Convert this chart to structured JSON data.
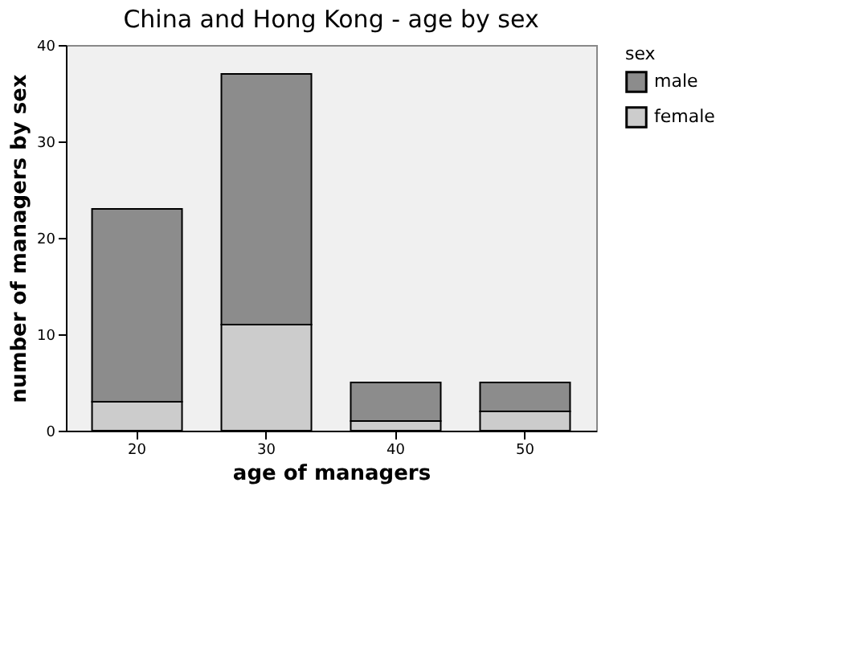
{
  "chart_data": {
    "type": "bar",
    "title": "China and Hong Kong  - age by sex",
    "xlabel": "age of managers",
    "ylabel": "number of managers by sex",
    "legend_title": "sex",
    "categories": [
      "20",
      "30",
      "40",
      "50"
    ],
    "series": [
      {
        "name": "female",
        "color": "#cccccc",
        "values": [
          3,
          11,
          1,
          2
        ]
      },
      {
        "name": "male",
        "color": "#8c8c8c",
        "values": [
          20,
          26,
          4,
          3
        ]
      }
    ],
    "stacked": true,
    "ylim": [
      0,
      40
    ],
    "yticks": [
      0,
      10,
      20,
      30,
      40
    ],
    "grid": false,
    "legend": "right"
  }
}
